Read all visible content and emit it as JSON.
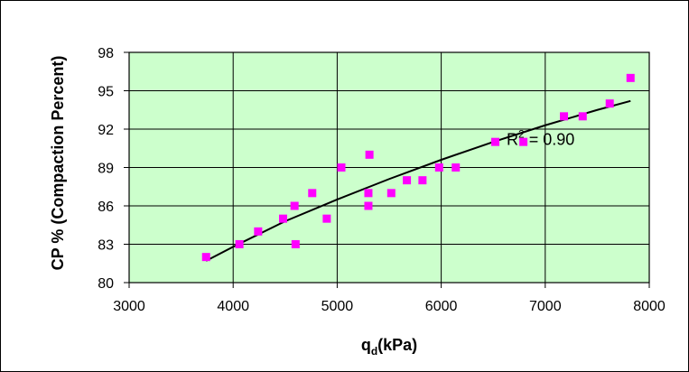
{
  "chart_data": {
    "type": "scatter",
    "xlabel": "qd(kPa)",
    "xlabel_main": "q",
    "xlabel_sub": "d",
    "xlabel_suffix": "(kPa)",
    "ylabel": "CP % (Compaction Percent)",
    "xlim": [
      3000,
      8000
    ],
    "ylim": [
      80,
      98
    ],
    "x_ticks": [
      3000,
      4000,
      5000,
      6000,
      7000,
      8000
    ],
    "y_ticks": [
      80,
      83,
      86,
      89,
      92,
      95,
      98
    ],
    "x_tick_labels": [
      "3000",
      "4000",
      "5000",
      "6000",
      "7000",
      "8000"
    ],
    "y_tick_labels": [
      "80",
      "83",
      "86",
      "89",
      "92",
      "95",
      "98"
    ],
    "grid": true,
    "legend": "none",
    "series": [
      {
        "points": [
          {
            "x": 3740,
            "y": 82
          },
          {
            "x": 4060,
            "y": 83
          },
          {
            "x": 4240,
            "y": 84
          },
          {
            "x": 4480,
            "y": 85
          },
          {
            "x": 4590,
            "y": 86
          },
          {
            "x": 4600,
            "y": 83
          },
          {
            "x": 4760,
            "y": 87
          },
          {
            "x": 4900,
            "y": 85
          },
          {
            "x": 5040,
            "y": 89
          },
          {
            "x": 5300,
            "y": 87
          },
          {
            "x": 5300,
            "y": 86
          },
          {
            "x": 5310,
            "y": 90
          },
          {
            "x": 5520,
            "y": 87
          },
          {
            "x": 5670,
            "y": 88
          },
          {
            "x": 5820,
            "y": 88
          },
          {
            "x": 5980,
            "y": 89
          },
          {
            "x": 6140,
            "y": 89
          },
          {
            "x": 6520,
            "y": 91
          },
          {
            "x": 6790,
            "y": 91
          },
          {
            "x": 7180,
            "y": 93
          },
          {
            "x": 7360,
            "y": 93
          },
          {
            "x": 7620,
            "y": 94
          },
          {
            "x": 7820,
            "y": 96
          }
        ]
      }
    ],
    "trendline": {
      "points": [
        {
          "x": 3740,
          "y": 81.7
        },
        {
          "x": 4000,
          "y": 82.8
        },
        {
          "x": 4500,
          "y": 84.8
        },
        {
          "x": 5000,
          "y": 86.5
        },
        {
          "x": 5500,
          "y": 88.1
        },
        {
          "x": 6000,
          "y": 89.6
        },
        {
          "x": 6500,
          "y": 91.0
        },
        {
          "x": 7000,
          "y": 92.3
        },
        {
          "x": 7500,
          "y": 93.5
        },
        {
          "x": 7820,
          "y": 94.2
        }
      ]
    },
    "annotation": {
      "prefix": "R",
      "superscript": "2",
      "suffix": " = 0.90",
      "anchor_x": 6950,
      "anchor_y": 91.2
    },
    "colors": {
      "plot_background": "#ccffcc",
      "grid": "#000000",
      "marker": "#ff00ff",
      "trendline": "#000000",
      "frame": "#000000"
    }
  }
}
